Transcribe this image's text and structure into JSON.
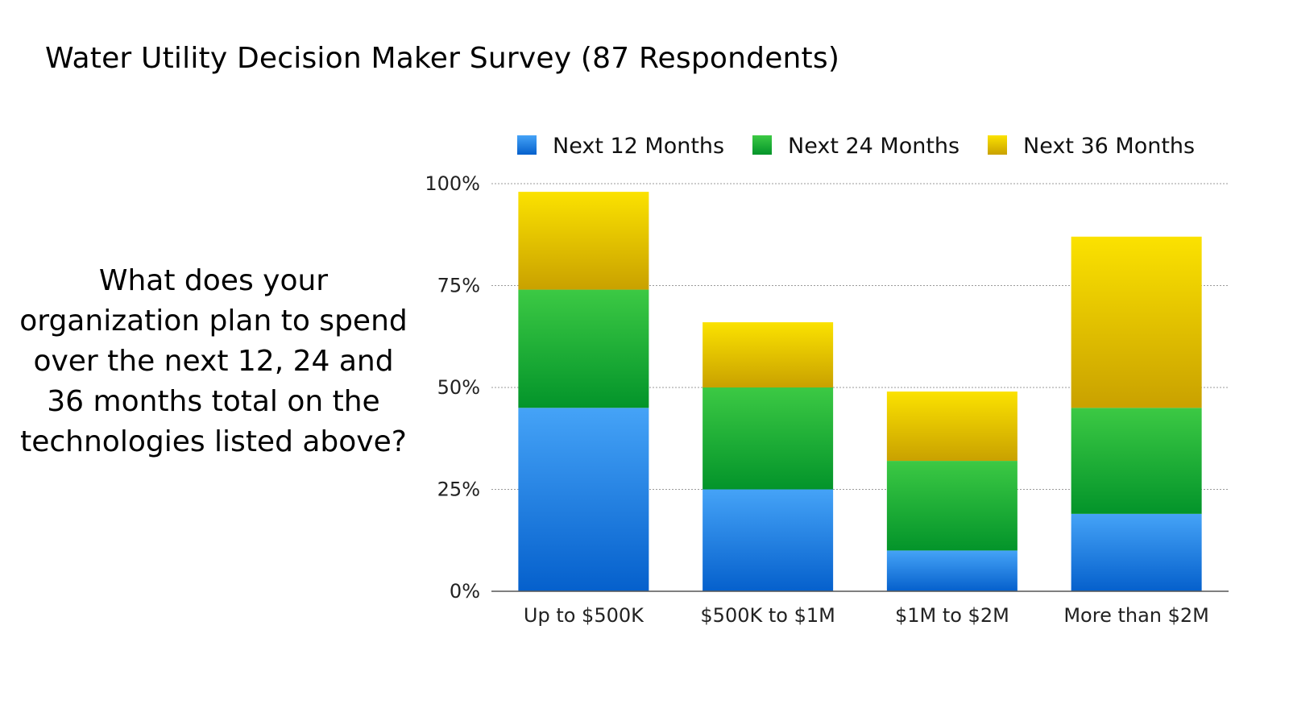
{
  "slide": {
    "title": "Water Utility Decision Maker Survey (87 Respondents)",
    "question": "What does your organization plan to spend over the next 12, 24 and 36 months total on the technologies listed above?"
  },
  "chart_data": {
    "type": "bar",
    "stacked": true,
    "categories": [
      "Up to $500K",
      "$500K to $1M",
      "$1M to $2M",
      "More than $2M"
    ],
    "series": [
      {
        "name": "Next 12 Months",
        "values": [
          45,
          25,
          10,
          19
        ],
        "color_light": "#45a3f7",
        "color_dark": "#0560cc"
      },
      {
        "name": "Next 24 Months",
        "values": [
          29,
          25,
          22,
          26
        ],
        "color_light": "#3cc944",
        "color_dark": "#03942a"
      },
      {
        "name": "Next 36 Months",
        "values": [
          24,
          16,
          17,
          42
        ],
        "color_light": "#fbe200",
        "color_dark": "#c9a100"
      }
    ],
    "ylim": [
      0,
      100
    ],
    "yticks": [
      0,
      25,
      50,
      75,
      100
    ],
    "ytick_labels": [
      "0%",
      "25%",
      "50%",
      "75%",
      "100%"
    ],
    "grid": true,
    "legend_position": "top"
  }
}
